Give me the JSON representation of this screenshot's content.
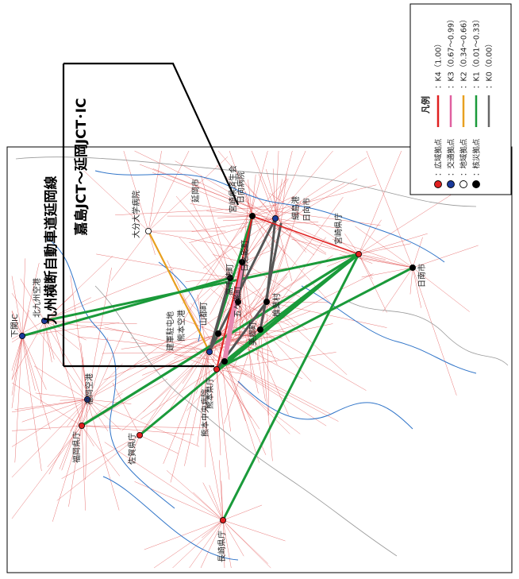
{
  "title": {
    "line1": "九州横断自動車道延岡線",
    "line2": "嘉島JCT～延岡JCT･IC"
  },
  "legend": {
    "title": "凡例",
    "nodes": [
      {
        "label": "：広域拠点",
        "fill": "#e02020"
      },
      {
        "label": "：交通拠点",
        "fill": "#1a3a9a"
      },
      {
        "label": "：地域拠点",
        "fill": "#ffffff"
      },
      {
        "label": "：核災拠点",
        "fill": "#000000"
      }
    ],
    "links": [
      {
        "label": "：K4（1.00）",
        "color": "#e02020"
      },
      {
        "label": "：K3（0.67～0.99）",
        "color": "#e060a0"
      },
      {
        "label": "：K2（0.34～0.66）",
        "color": "#e8a020"
      },
      {
        "label": "：K1（0.01～0.33）",
        "color": "#1a9a3a"
      },
      {
        "label": "：K0（0.00）",
        "color": "#666666"
      }
    ]
  },
  "places": {
    "shimonoseki": "下関IC",
    "kitakyushu": "北九州空港",
    "fukuoka_airport": "福岡空港",
    "fukuoka_pref": "福岡県庁",
    "saga": "佐賀県庁",
    "nagasaki": "長崎県庁",
    "oita_hosp": "大分大学病院",
    "kumamoto_pref": "熊本県庁",
    "kumamoto_hosp": "熊本中央病院",
    "kumamoto_airport": "熊本空港",
    "kengun": "建軍駐屯地",
    "yamato": "山都町",
    "takachiho": "高千穂町",
    "gokase": "五ケ瀬町",
    "hinokage": "日之影町",
    "nobeoka": "延岡市",
    "saiseikai": "宮崎県済生会",
    "hyuga_hosp": "日向病院",
    "hososhima": "細島港",
    "hyuga": "日向市",
    "miyazaki": "宮崎県庁",
    "nichinan": "日南市",
    "shiiba": "椎葉村",
    "misato": "美郷町"
  }
}
